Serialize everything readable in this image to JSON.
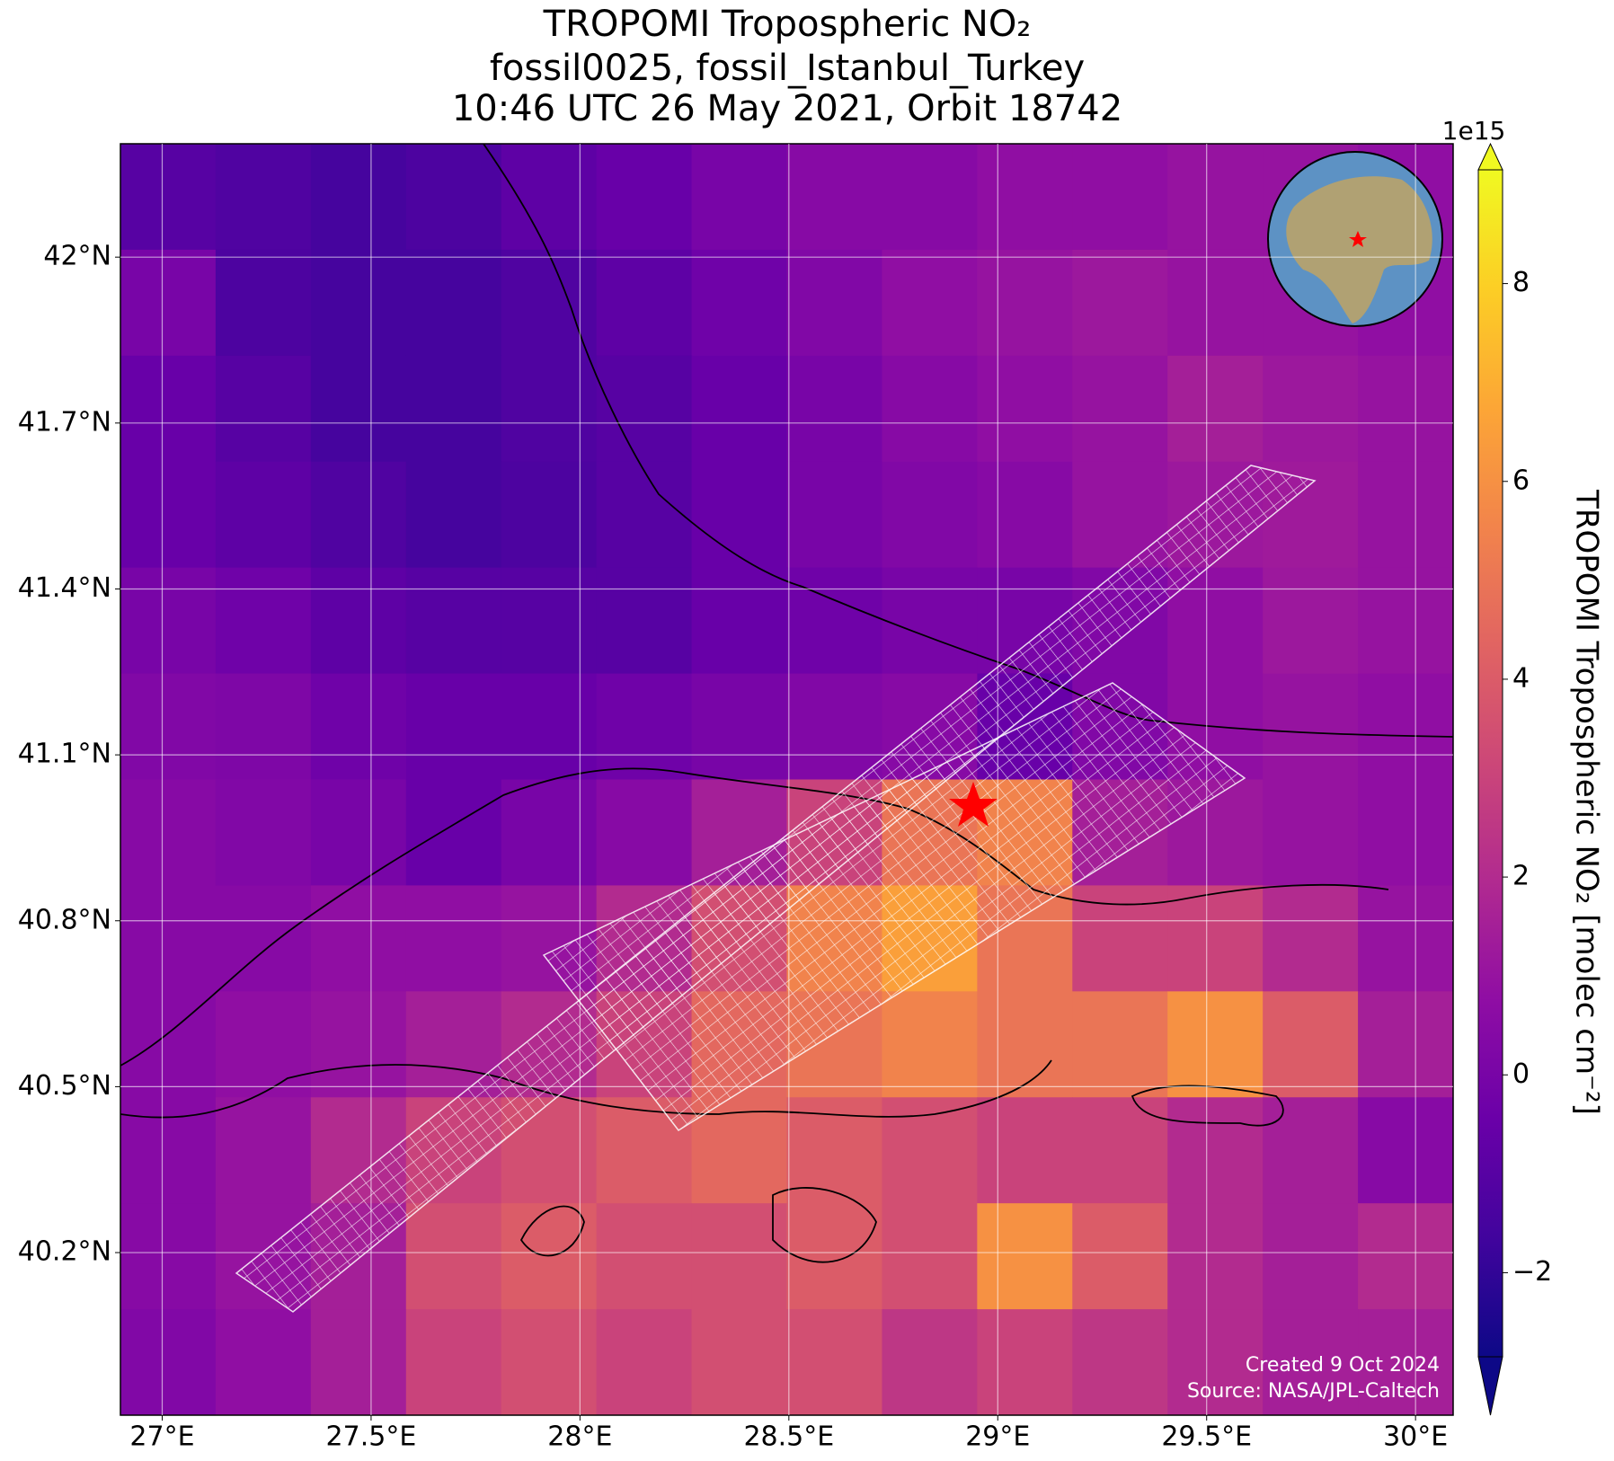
{
  "chart_data": {
    "type": "heatmap",
    "title": [
      "TROPOMI Tropospheric NO₂",
      "fossil0025, fossil_Istanbul_Turkey",
      "10:46 UTC 26 May 2021, Orbit 18742"
    ],
    "colorbar_label": "TROPOMI Tropospheric NO₂ [molec cm⁻²]",
    "colorbar_multiplier": "1e15",
    "colormap": "plasma",
    "annotations": [
      "Created 9 Oct 2024",
      "Source: NASA/JPL-Caltech"
    ],
    "xlim": [
      26.9,
      30.09
    ],
    "ylim": [
      39.906,
      42.205
    ],
    "clim": [
      -2.85,
      9.15
    ],
    "xticks": [
      {
        "value": 27,
        "label": "27°E"
      },
      {
        "value": 27.5,
        "label": "27.5°E"
      },
      {
        "value": 28,
        "label": "28°E"
      },
      {
        "value": 28.5,
        "label": "28.5°E"
      },
      {
        "value": 29,
        "label": "29°E"
      },
      {
        "value": 29.5,
        "label": "29.5°E"
      },
      {
        "value": 30,
        "label": "30°E"
      }
    ],
    "yticks": [
      {
        "value": 40.2,
        "label": "40.2°N"
      },
      {
        "value": 40.5,
        "label": "40.5°N"
      },
      {
        "value": 40.8,
        "label": "40.8°N"
      },
      {
        "value": 41.1,
        "label": "41.1°N"
      },
      {
        "value": 41.4,
        "label": "41.4°N"
      },
      {
        "value": 41.7,
        "label": "41.7°N"
      },
      {
        "value": 42,
        "label": "42°N"
      }
    ],
    "cticks": [
      {
        "value": -2,
        "label": "−2"
      },
      0,
      2,
      4,
      6,
      8
    ],
    "grid": true,
    "values": [
      [
        -1,
        -1.2,
        -1.5,
        -1.3,
        -0.8,
        -0.5,
        0,
        0.5,
        0.5,
        0.8,
        0.8,
        1,
        1,
        0.8
      ],
      [
        0,
        -1.3,
        -1.5,
        -1.5,
        -1.2,
        -0.8,
        -0.3,
        0.3,
        0.8,
        1,
        1.2,
        1,
        1,
        0.8
      ],
      [
        -0.5,
        -1,
        -1.5,
        -1.5,
        -1.2,
        -1,
        -0.5,
        0,
        0.5,
        0.8,
        1,
        1.5,
        1.2,
        1
      ],
      [
        -0.5,
        -0.8,
        -1.2,
        -1.5,
        -1.3,
        -1,
        -0.5,
        0,
        0.3,
        0.5,
        1,
        1.2,
        1.3,
        1
      ],
      [
        0,
        -0.3,
        -0.8,
        -1,
        -1,
        -1,
        -0.5,
        -0.3,
        0,
        0,
        0.3,
        0.8,
        1.2,
        1
      ],
      [
        0.3,
        0.2,
        -0.3,
        -0.5,
        -0.5,
        -0.3,
        0,
        0.3,
        0.5,
        -0.5,
        0.3,
        0.8,
        1,
        0.8
      ],
      [
        0.5,
        0.3,
        0,
        -0.5,
        0,
        0.5,
        1.5,
        3,
        5,
        5.5,
        1.5,
        1.2,
        1,
        0.8
      ],
      [
        0.5,
        0.5,
        0.8,
        0.8,
        1,
        2,
        3.5,
        5.5,
        6.5,
        5,
        3,
        3,
        2,
        1
      ],
      [
        0.5,
        0.8,
        1,
        1.5,
        2,
        3,
        4.5,
        5,
        5.5,
        5,
        5,
        6,
        4,
        1.5
      ],
      [
        0.5,
        1,
        2,
        3,
        3.5,
        4,
        4.5,
        4,
        3.5,
        3,
        3,
        2,
        1.5,
        0.5
      ],
      [
        0.5,
        1,
        1.5,
        3.5,
        4,
        3.5,
        3.5,
        4,
        3.5,
        6,
        4,
        2,
        1.5,
        2
      ],
      [
        0.3,
        0.8,
        1.5,
        3,
        3.5,
        3,
        3.5,
        3.5,
        2.5,
        3,
        2.5,
        2,
        1.5,
        1.5
      ]
    ]
  }
}
